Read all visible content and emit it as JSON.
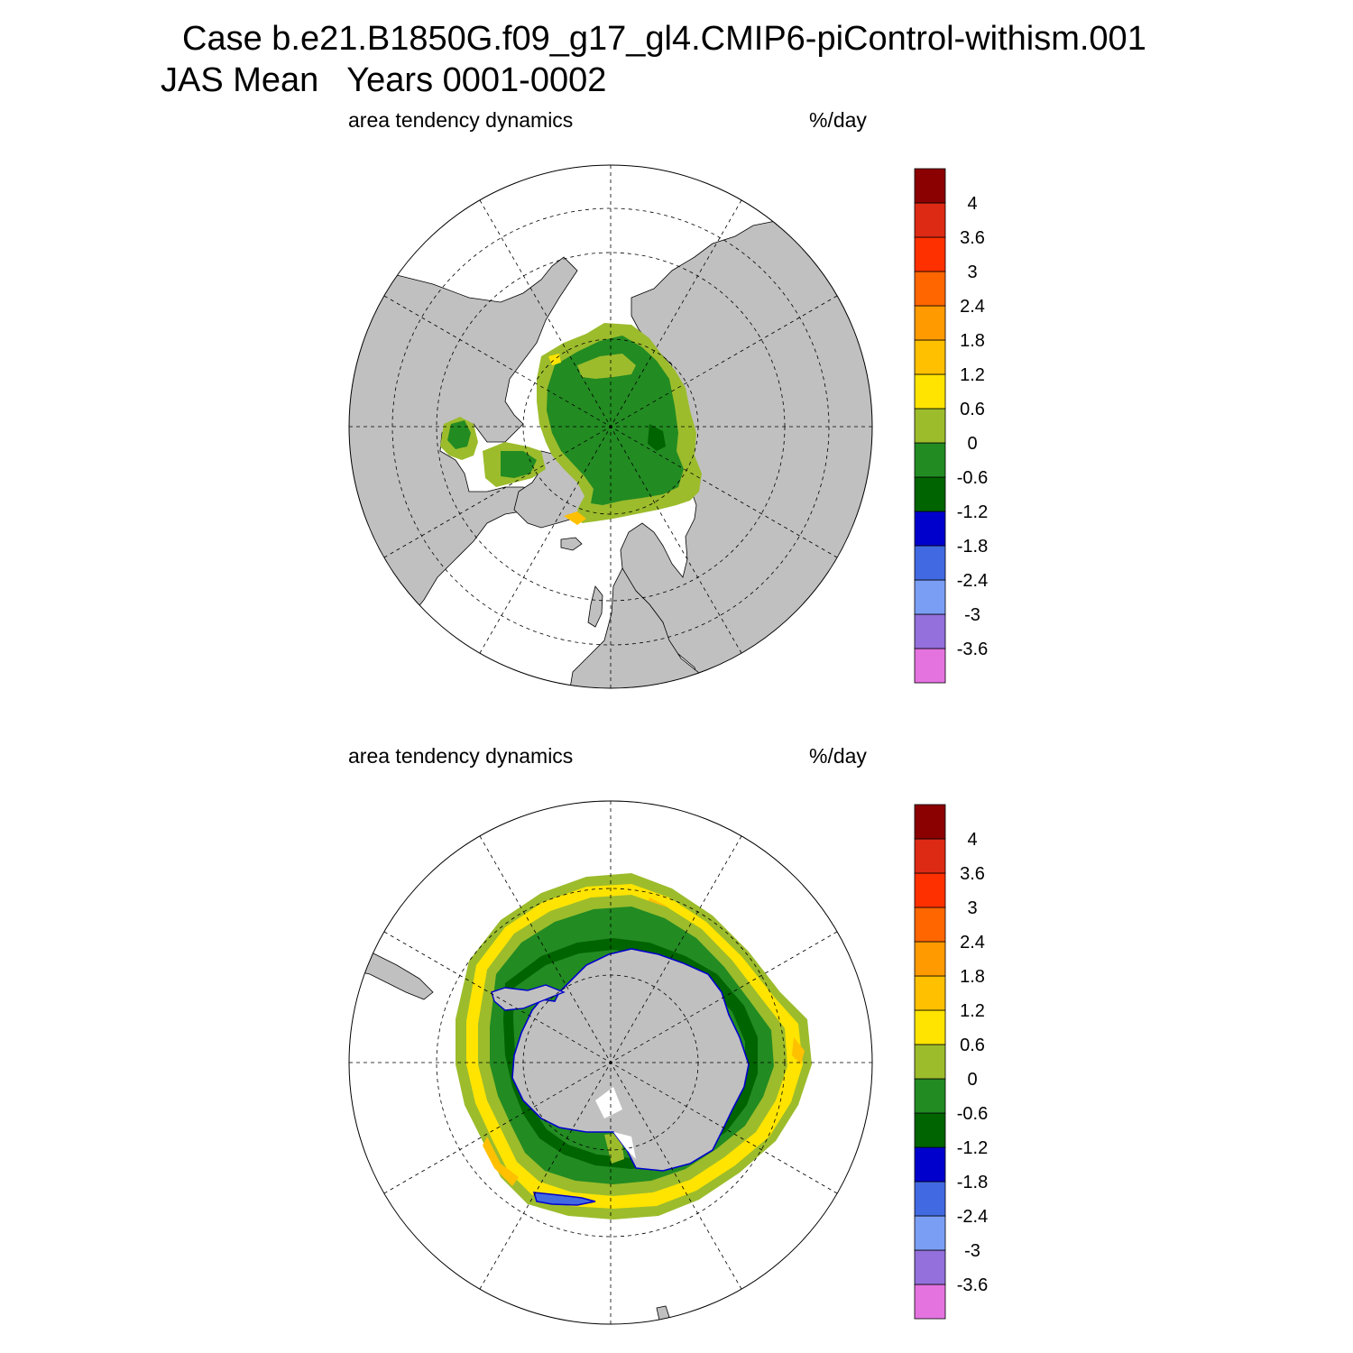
{
  "header": {
    "title_line1": "Case b.e21.B1850G.f09_g17_gl4.CMIP6-piControl-withism.001",
    "title_line2": "JAS Mean   Years 0001-0002"
  },
  "panels": [
    {
      "name": "north",
      "left_label": "area tendency dynamics",
      "right_label": "%/day"
    },
    {
      "name": "south",
      "left_label": "area tendency dynamics",
      "right_label": "%/day"
    }
  ],
  "colorbar": {
    "colors": [
      "#e473e0",
      "#9370db",
      "#7b9ef5",
      "#4169e1",
      "#0000cd",
      "#006400",
      "#228b22",
      "#9cbc2c",
      "#ffe400",
      "#ffc000",
      "#ff9a00",
      "#ff6600",
      "#ff3000",
      "#dc2a14",
      "#8b0000"
    ],
    "labels": [
      "-3.6",
      "-3",
      "-2.4",
      "-1.8",
      "-1.2",
      "-0.6",
      "0",
      "0.6",
      "1.2",
      "1.8",
      "2.4",
      "3",
      "3.6",
      "4"
    ]
  },
  "map_colors": {
    "land": "#c0c0c0",
    "ocean": "#ffffff",
    "ice_green": "#228b22",
    "ice_light_green": "#9cbc2c",
    "ice_dark_green": "#006400",
    "ice_yellow": "#ffe400",
    "ice_orange": "#ffc000"
  }
}
